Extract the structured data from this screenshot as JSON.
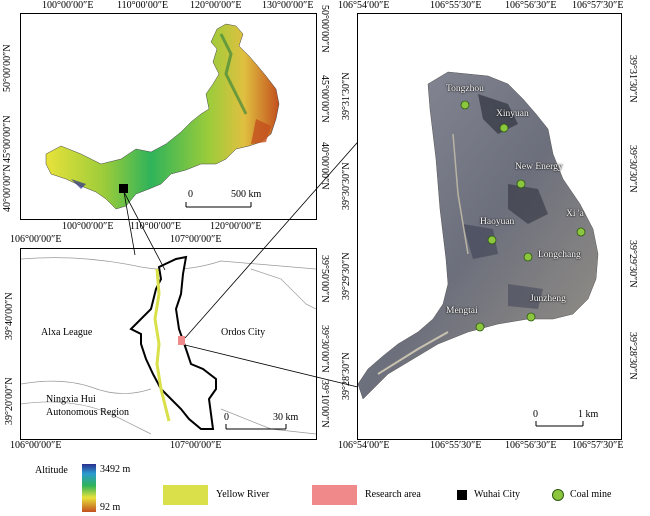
{
  "inset_top": {
    "lon_ticks": [
      "100°00′00″E",
      "110°00′00″E",
      "120°00′00″E",
      "130°00′00″E"
    ],
    "lat_ticks_left": [
      "50°00′00″N",
      "45°00′00″N",
      "40°00′00″N"
    ],
    "lat_ticks_right": [
      "50°00′00″N",
      "45°00′00″N",
      "40°00′00″N"
    ],
    "scale_zero": "0",
    "scale_label": "500 km"
  },
  "inset_bottom": {
    "lon_ticks_top": [
      "106°00′00″E",
      "107°00′00″E"
    ],
    "lon_ticks_bottom": [
      "106°00′00″E",
      "107°00′00″E"
    ],
    "lat_ticks_left": [
      "39°40′00″N",
      "39°20′00″N"
    ],
    "lat_ticks_right": [
      "39°50′00″N",
      "39°30′00″N",
      "39°10′00″N"
    ],
    "regions": [
      "Alxa League",
      "Ordos City",
      "Ningxia Hui",
      "Autonomous Region"
    ],
    "scale_zero": "0",
    "scale_label": "30 km"
  },
  "main_map": {
    "lon_ticks_top": [
      "106°54′00″E",
      "106°55′30″E",
      "106°56′30″E",
      "106°57′30″E"
    ],
    "lon_ticks_bottom": [
      "106°54′00″E",
      "106°55′30″E",
      "106°56′30″E",
      "106°57′30″E"
    ],
    "lat_ticks_left": [
      "39°31′30″N",
      "39°30′30″N",
      "39°29′30″N",
      "39°28′30″N"
    ],
    "lat_ticks_right": [
      "39°31′30″N",
      "39°30′30″N",
      "39°29′30″N",
      "39°28′30″N"
    ],
    "mines": [
      "Tongzhou",
      "Xinyuan",
      "New Energy",
      "Haoyuan",
      "Xi 'a",
      "Longchang",
      "Mengtai",
      "Junzheng"
    ],
    "scale_zero": "0",
    "scale_label": "1 km"
  },
  "legend": {
    "altitude_title": "Altitude",
    "altitude_max": "3492 m",
    "altitude_min": "92 m",
    "yellow_river": "Yellow River",
    "research_area": "Research area",
    "wuhai_city": "Wuhai City",
    "coal_mine": "Coal mine"
  },
  "colors": {
    "altitude_high": "#2b2f8f",
    "altitude_mid_high": "#2a9bd0",
    "altitude_mid": "#2fb35a",
    "altitude_mid_low": "#e8e23a",
    "altitude_low": "#c3501e",
    "yellow_river": "#d9e04a",
    "research_area": "#f08a8a",
    "coal_mine": "#8cc63f"
  }
}
